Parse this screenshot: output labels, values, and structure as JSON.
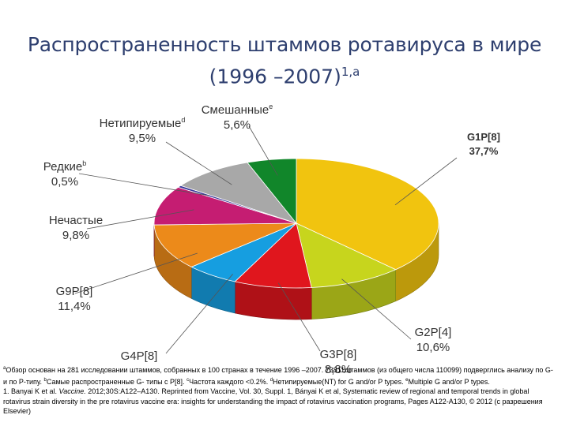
{
  "title": {
    "line1": "Распространенность штаммов ротавируса в мире",
    "line2": "(1996 –2007)",
    "line2_sup": "1,a"
  },
  "chart_data": {
    "type": "pie",
    "style": "3d",
    "series": [
      {
        "name": "G1P[8]",
        "value_label": "37,7%",
        "value": 37.7,
        "color": "#f1c40f",
        "sup": ""
      },
      {
        "name": "G2P[4]",
        "value_label": "10,6%",
        "value": 10.6,
        "color": "#c7d51d",
        "sup": ""
      },
      {
        "name": "G3P[8]",
        "value_label": "8,8%",
        "value": 8.8,
        "color": "#e0161d",
        "sup": ""
      },
      {
        "name": "G4P[8]",
        "value_label": "",
        "value": 6.1,
        "color": "#169ee0",
        "sup": ""
      },
      {
        "name": "G9P[8]",
        "value_label": "11,4%",
        "value": 11.4,
        "color": "#ec8a1a",
        "sup": ""
      },
      {
        "name": "Нечастые",
        "value_label": "9,8%",
        "value": 9.8,
        "color": "#c51d72",
        "sup": ""
      },
      {
        "name": "Редкие",
        "value_label": "0,5%",
        "value": 0.5,
        "color": "#3a3a9a",
        "sup": "b"
      },
      {
        "name": "Нетипируемые",
        "value_label": "9,5%",
        "value": 9.5,
        "color": "#a8a8a8",
        "sup": "d"
      },
      {
        "name": "Смешанные",
        "value_label": "5,6%",
        "value": 5.6,
        "color": "#11862a",
        "sup": "e"
      }
    ]
  },
  "footnote": {
    "a_sup": "a",
    "a_text": "Обзор основан на 281 исследовании штаммов, собранных в 100 странах в течение 1996 –2007. 73811штаммов (из общего числа 110099) подверглись анализу по G- и по P-типу. ",
    "b_sup": "b",
    "b_text": "Самые распространенные G- типы с P[8]. ",
    "c_sup": "c",
    "c_text": "Частота каждого <0.2%. ",
    "d_sup": "d",
    "d_text": "Нетипируемые(NT) for G and/or P types. ",
    "e_sup": "e",
    "e_text": "Multiple G and/or P types.",
    "ref1": "1. Banyai K et al. ",
    "ref1_journal": "Vaccine.",
    "ref1_rest": " 2012;30S:A122–A130. Reprinted from Vaccine, Vol. 30, Suppl. 1, Bányai K et al, Systematic review of regional and temporal trends in global rotavirus strain diversity in the pre rotavirus vaccine era: insights for understanding the impact of rotavirus vaccination programs, Pages A122-A130, © 2012 (с разрешения Elsevier)"
  }
}
